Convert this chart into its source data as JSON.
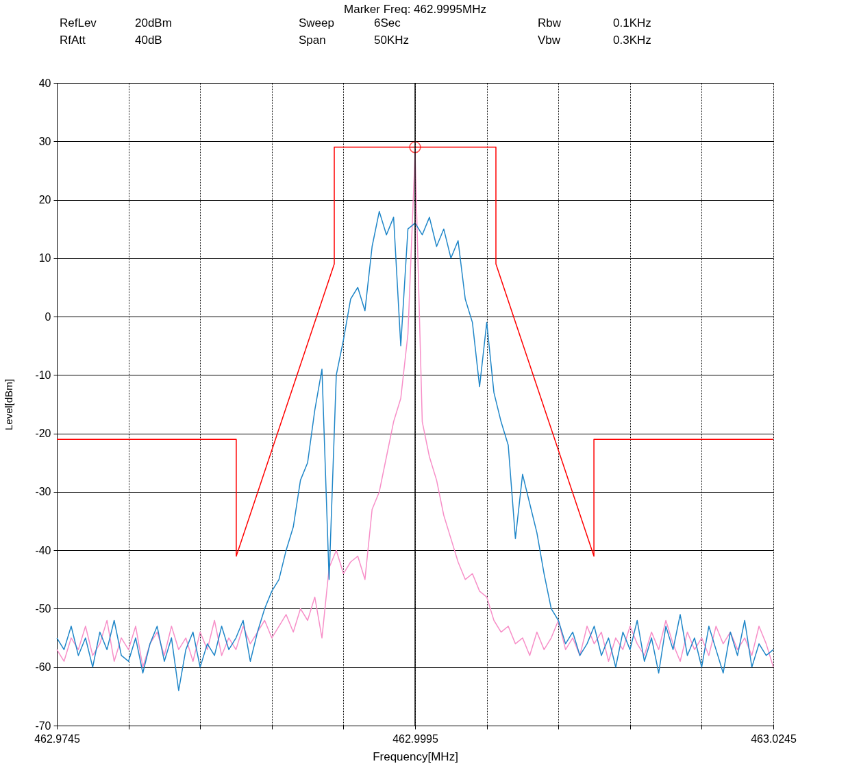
{
  "chart_data": {
    "type": "line",
    "title": "Marker Freq: 462.9995MHz",
    "xlabel": "Frequency[MHz]",
    "ylabel": "Level[dBm]",
    "annotations": [
      "RefLev",
      "20dBm",
      "RfAtt",
      "40dB",
      "Sweep",
      "6Sec",
      "Span",
      "50KHz",
      "Rbw",
      "0.1KHz",
      "Vbw",
      "0.3KHz"
    ],
    "x": [
      462.9745,
      462.975,
      462.9755,
      462.976,
      462.9765,
      462.977,
      462.9775,
      462.978,
      462.9785,
      462.979,
      462.9795,
      462.98,
      462.9805,
      462.981,
      462.9815,
      462.982,
      462.9825,
      462.983,
      462.9835,
      462.984,
      462.9845,
      462.985,
      462.9855,
      462.986,
      462.9865,
      462.987,
      462.9875,
      462.988,
      462.9885,
      462.989,
      462.9895,
      462.99,
      462.9905,
      462.991,
      462.9915,
      462.992,
      462.9925,
      462.993,
      462.9935,
      462.994,
      462.9945,
      462.995,
      462.9955,
      462.996,
      462.9965,
      462.997,
      462.9975,
      462.998,
      462.9985,
      462.999,
      462.9995,
      463.0,
      463.0005,
      463.001,
      463.0015,
      463.002,
      463.0025,
      463.003,
      463.0035,
      463.004,
      463.0045,
      463.005,
      463.0055,
      463.006,
      463.0065,
      463.007,
      463.0075,
      463.008,
      463.0085,
      463.009,
      463.0095,
      463.01,
      463.0105,
      463.011,
      463.0115,
      463.012,
      463.0125,
      463.013,
      463.0135,
      463.014,
      463.0145,
      463.015,
      463.0155,
      463.016,
      463.0165,
      463.017,
      463.0175,
      463.018,
      463.0185,
      463.019,
      463.0195,
      463.02,
      463.0205,
      463.021,
      463.0215,
      463.022,
      463.0225,
      463.023,
      463.0235,
      463.024,
      463.0245
    ],
    "series": [
      {
        "color": "#ff0000",
        "x": [
          462.9745,
          462.98702,
          462.98702,
          462.99386,
          462.99386,
          463.00514,
          463.00514,
          463.01198,
          463.01198,
          463.0245
        ],
        "values": [
          -21,
          -21,
          -41,
          9,
          29,
          29,
          9,
          -41,
          -21,
          -21
        ]
      },
      {
        "color": "#f78fc8",
        "values": [
          -57,
          -59,
          -55,
          -57,
          -53,
          -58,
          -56,
          -52,
          -59,
          -55,
          -57,
          -53,
          -60,
          -56,
          -54,
          -58,
          -53,
          -57,
          -55,
          -59,
          -54,
          -57,
          -52,
          -58,
          -55,
          -57,
          -53,
          -56,
          -54,
          -52,
          -55,
          -53,
          -51,
          -54,
          -50,
          -52,
          -48,
          -55,
          -43,
          -40,
          -44,
          -42,
          -41,
          -45,
          -33,
          -30,
          -24,
          -18,
          -14,
          -3,
          28,
          -18,
          -24,
          -28,
          -34,
          -38,
          -42,
          -45,
          -44,
          -47,
          -48,
          -52,
          -54,
          -53,
          -56,
          -55,
          -58,
          -54,
          -57,
          -55,
          -52,
          -57,
          -55,
          -58,
          -53,
          -56,
          -54,
          -59,
          -55,
          -57,
          -53,
          -56,
          -58,
          -54,
          -57,
          -52,
          -56,
          -59,
          -54,
          -57,
          -55,
          -58,
          -53,
          -56,
          -54,
          -57,
          -55,
          -58,
          -53,
          -56,
          -60
        ]
      },
      {
        "color": "#1f86c8",
        "values": [
          -55,
          -57,
          -53,
          -58,
          -55,
          -60,
          -54,
          -57,
          -52,
          -58,
          -59,
          -55,
          -61,
          -56,
          -53,
          -59,
          -55,
          -64,
          -57,
          -54,
          -60,
          -56,
          -58,
          -53,
          -57,
          -55,
          -52,
          -59,
          -54,
          -50,
          -47,
          -45,
          -40,
          -36,
          -28,
          -25,
          -16,
          -9,
          -45,
          -10,
          -4,
          3,
          5,
          1,
          12,
          18,
          14,
          17,
          -5,
          15,
          16,
          14,
          17,
          12,
          15,
          10,
          13,
          3,
          -1,
          -12,
          -1,
          -13,
          -18,
          -22,
          -38,
          -27,
          -32,
          -37,
          -44,
          -50,
          -52,
          -56,
          -54,
          -58,
          -56,
          -53,
          -58,
          -55,
          -60,
          -54,
          -57,
          -52,
          -59,
          -55,
          -61,
          -53,
          -57,
          -51,
          -58,
          -55,
          -60,
          -53,
          -57,
          -61,
          -54,
          -58,
          -52,
          -60,
          -56,
          -58,
          -57
        ]
      },
      {
        "type": "scatter",
        "color": "#ff0000",
        "marker": "circle",
        "x": [
          462.9995
        ],
        "values": [
          29
        ]
      }
    ],
    "xlim": [
      462.9745,
      463.0245
    ],
    "ylim": [
      -70,
      40
    ],
    "xticks": [
      462.9745,
      {
        "value": 462.9795,
        "label": null
      },
      {
        "value": 462.9845,
        "label": null
      },
      {
        "value": 462.9895,
        "label": null
      },
      {
        "value": 462.9945,
        "label": null
      },
      462.9995,
      {
        "value": 463.0045,
        "label": null
      },
      {
        "value": 463.0095,
        "label": null
      },
      {
        "value": 463.0145,
        "label": null
      },
      {
        "value": 463.0195,
        "label": null
      },
      463.0245
    ],
    "yticks": [
      -70,
      -60,
      -50,
      -40,
      -30,
      -20,
      -10,
      0,
      10,
      20,
      30,
      40
    ],
    "grid": true,
    "legend": false,
    "ref_lines": [
      {
        "axis": "x",
        "value": 462.9995,
        "color": "#000000"
      }
    ]
  }
}
